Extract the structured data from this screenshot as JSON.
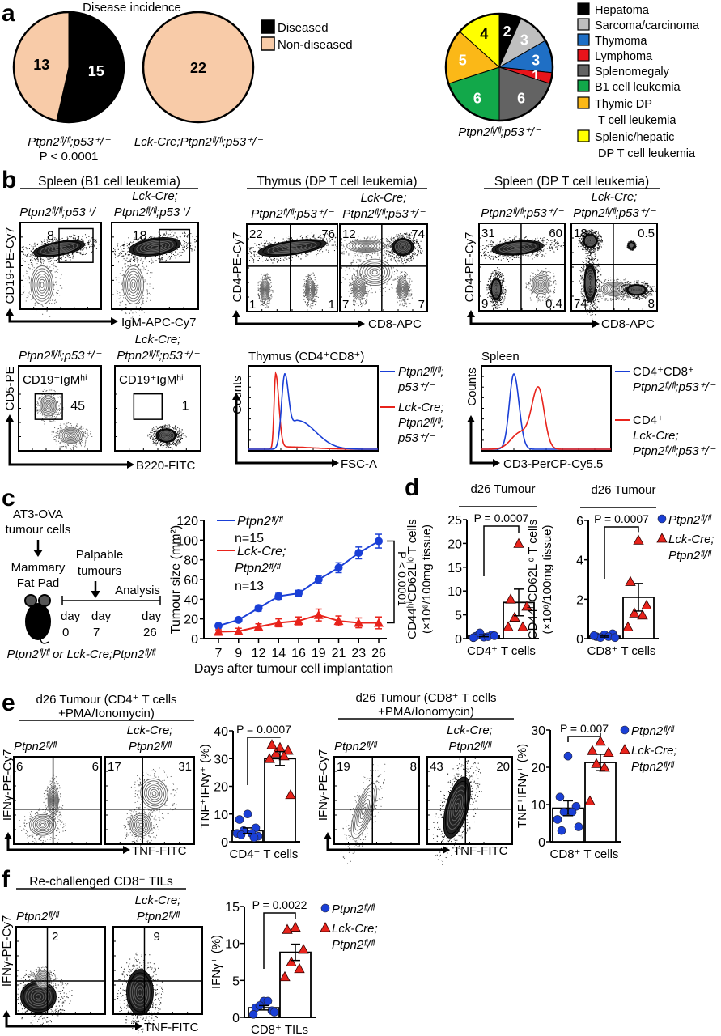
{
  "panel_labels": [
    "a",
    "b",
    "c",
    "d",
    "e",
    "f"
  ],
  "colors": {
    "control": "#1a3fd6",
    "knockout": "#e8231b",
    "diseased": "#000000",
    "non_diseased": "#f8cba8"
  },
  "pie_legend": [
    "Diseased",
    "Non-diseased"
  ],
  "chart_data": [
    {
      "type": "pie",
      "title": "Disease incidence",
      "categories": [
        "Diseased",
        "Non-diseased"
      ],
      "values": [
        15,
        13
      ],
      "colors": [
        "#000000",
        "#f8cba8"
      ],
      "caption": "Ptpn2ᶠˡ/ᶠˡ;p53⁺/⁻",
      "pvalue": "P < 0.0001"
    },
    {
      "type": "pie",
      "categories": [
        "Diseased",
        "Non-diseased"
      ],
      "values": [
        0,
        22
      ],
      "colors": [
        "#000000",
        "#f8cba8"
      ],
      "caption": "Lck-Cre;Ptpn2ᶠˡ/ᶠˡ;p53⁺/⁻"
    },
    {
      "type": "pie",
      "categories": [
        "Hepatoma",
        "Sarcoma/carcinoma",
        "Thymoma",
        "Lymphoma",
        "Splenomegaly",
        "B1 cell leukemia",
        "Thymic DP T cell leukemia",
        "Splenic/hepatic DP T cell leukemia"
      ],
      "legend_lines": [
        [
          "Hepatoma"
        ],
        [
          "Sarcoma/carcinoma"
        ],
        [
          "Thymoma"
        ],
        [
          "Lymphoma"
        ],
        [
          "Splenomegaly"
        ],
        [
          "B1 cell leukemia"
        ],
        [
          "Thymic DP",
          "T cell leukemia"
        ],
        [
          "Splenic/hepatic",
          "DP T cell leukemia"
        ]
      ],
      "values": [
        2,
        3,
        3,
        1,
        6,
        6,
        5,
        4
      ],
      "colors": [
        "#000000",
        "#bfbfbf",
        "#1f6fc5",
        "#e8141b",
        "#636363",
        "#12a84a",
        "#fbb817",
        "#ffff00"
      ],
      "label_colors": [
        "#ffffff",
        "#ffffff",
        "#ffffff",
        "#ffffff",
        "#ffffff",
        "#ffffff",
        "#ffffff",
        "#000000"
      ],
      "caption": "Ptpn2ᶠˡ/ᶠˡ;p53⁺/⁻"
    },
    {
      "type": "line",
      "x": [
        7,
        9,
        12,
        14,
        16,
        19,
        21,
        23,
        26
      ],
      "xlabel": "Days after tumour cell implantation",
      "ylabel": "Tumour size (mm²)",
      "ylim": [
        0,
        120
      ],
      "yticks": [
        0,
        20,
        40,
        60,
        80,
        100,
        120
      ],
      "annotation": "P < 0.0001",
      "series": [
        {
          "name": [
            "Ptpn2ᶠˡ/ᶠˡ"
          ],
          "n": "n=15",
          "color": "#1a3fd6",
          "marker": "circle",
          "values": [
            13,
            19,
            31,
            43,
            46,
            60,
            72,
            87,
            99
          ],
          "sem": [
            2,
            2,
            3,
            3,
            3,
            4,
            5,
            6,
            7
          ]
        },
        {
          "name": [
            "Lck-Cre;",
            "Ptpn2ᶠˡ/ᶠˡ"
          ],
          "n": "n=13",
          "color": "#e8231b",
          "marker": "triangle",
          "values": [
            7,
            7.5,
            12,
            16,
            18,
            24,
            18,
            16,
            16
          ],
          "sem": [
            2,
            3,
            3,
            4,
            4,
            6,
            5,
            5,
            6
          ]
        }
      ]
    },
    {
      "type": "bar",
      "title": "d26 Tumour",
      "xlabel": "CD4⁺ T cells",
      "ylabel": [
        "CD44ʰⁱCD62Lˡᵒ T cells",
        "(×10⁶/100mg tissue)"
      ],
      "ylim": [
        0,
        25
      ],
      "yticks": [
        0,
        5,
        10,
        15,
        20,
        25
      ],
      "pvalue": "P = 0.0007",
      "series": [
        {
          "mean": 0.6,
          "sem": 0.2,
          "points": [
            0.3,
            0.5,
            0.8,
            1.2,
            0.4,
            0.2,
            0.6
          ]
        },
        {
          "mean": 7.6,
          "sem": 2.8,
          "points": [
            20,
            8.3,
            6.8,
            4.5,
            2.5,
            2.5
          ]
        }
      ]
    },
    {
      "type": "bar",
      "title": "d26 Tumour",
      "xlabel": "CD8⁺ T cells",
      "ylabel": [
        "CD44ʰⁱCD62Lˡᵒ T cells",
        "(×10⁶/100mg tissue)"
      ],
      "ylim": [
        0,
        6
      ],
      "yticks": [
        0,
        2,
        4,
        6
      ],
      "pvalue": "P = 0.0007",
      "series": [
        {
          "name": [
            "Ptpn2ᶠˡ/ᶠˡ"
          ],
          "mean": 0.12,
          "sem": 0.04,
          "points": [
            0.2,
            0.1,
            0.25,
            0.05,
            0.1,
            0.15,
            0.05
          ]
        },
        {
          "name": [
            "Lck-Cre;",
            "Ptpn2ᶠˡ/ᶠˡ"
          ],
          "mean": 2.1,
          "sem": 0.7,
          "points": [
            5,
            2.9,
            1.7,
            1.3,
            1.2,
            0.6
          ]
        }
      ]
    },
    {
      "type": "bar",
      "xlabel": "CD4⁺ T cells",
      "ylabel": [
        "TNF⁺IFNγ⁺ (%)"
      ],
      "ylim": [
        0,
        40
      ],
      "yticks": [
        0,
        10,
        20,
        30,
        40
      ],
      "pvalue": "P = 0.0007",
      "series": [
        {
          "mean": 4,
          "sem": 1,
          "points": [
            10,
            8,
            5,
            4,
            3,
            3,
            2,
            2.5,
            1.5
          ]
        },
        {
          "mean": 30,
          "sem": 2.5,
          "points": [
            34,
            35,
            33,
            32,
            31,
            30,
            17
          ]
        }
      ]
    },
    {
      "type": "bar",
      "xlabel": "CD8⁺ T cells",
      "ylabel": [
        "TNF⁺IFNγ⁺ (%)"
      ],
      "ylim": [
        0,
        30
      ],
      "yticks": [
        0,
        10,
        20,
        30
      ],
      "pvalue": "P = 0.007",
      "series": [
        {
          "name": [
            "Ptpn2ᶠˡ/ᶠˡ"
          ],
          "mean": 9,
          "sem": 2,
          "points": [
            23,
            12,
            9.5,
            8,
            8,
            6,
            4,
            3
          ]
        },
        {
          "name": [
            "Lck-Cre;",
            "Ptpn2ᶠˡ/ᶠˡ"
          ],
          "mean": 21.3,
          "sem": 2.2,
          "points": [
            27,
            24.5,
            24,
            21,
            20,
            11
          ]
        }
      ]
    },
    {
      "type": "bar",
      "xlabel": "CD8⁺ TILs",
      "ylabel": [
        "IFNγ⁺ (%)"
      ],
      "ylim": [
        0,
        15
      ],
      "yticks": [
        0,
        5,
        10,
        15
      ],
      "pvalue": "P = 0.0022",
      "series": [
        {
          "name": [
            "Ptpn2ᶠˡ/ᶠˡ"
          ],
          "mean": 1.3,
          "sem": 0.3,
          "points": [
            2.2,
            1.3,
            0.9,
            1.6,
            2.2,
            0.4,
            0.7
          ]
        },
        {
          "name": [
            "Lck-Cre;",
            "Ptpn2ᶠˡ/ᶠˡ"
          ],
          "mean": 8.8,
          "sem": 1.1,
          "points": [
            12.2,
            11.9,
            9.2,
            7.5,
            6.6,
            5.5
          ]
        }
      ]
    }
  ],
  "c_schematic": {
    "injection": [
      "AT3-OVA",
      "tumour cells"
    ],
    "site": [
      "Mammary",
      "Fat Pad"
    ],
    "palpable": [
      "Palpable",
      "tumours"
    ],
    "analysis": "Analysis",
    "days": [
      [
        "day",
        "0"
      ],
      [
        "day",
        "7"
      ],
      [
        "day",
        "26"
      ]
    ],
    "genotypes": "Ptpn2ᶠˡ/ᶠˡ or Lck-Cre;Ptpn2ᶠˡ/ᶠˡ"
  },
  "flow_cytometry": {
    "b_spleen_b1": {
      "title": "Spleen (B1 cell leukemia)",
      "x_label": "IgM-APC-Cy7",
      "y_label": "CD19-PE-Cy7",
      "plots": [
        {
          "genotype": [
            "",
            "Ptpn2ᶠˡ/ᶠˡ;p53⁺/⁻"
          ],
          "gate_value": "8"
        },
        {
          "genotype": [
            "Lck-Cre;",
            "Ptpn2ᶠˡ/ᶠˡ;p53⁺/⁻"
          ],
          "gate_value": "18"
        }
      ]
    },
    "b_spleen_cd5": {
      "x_label": "B220-FITC",
      "y_label": "CD5-PE",
      "plots": [
        {
          "genotype": [
            "",
            "Ptpn2ᶠˡ/ᶠˡ;p53⁺/⁻"
          ],
          "gate_label": "CD19⁺IgMʰⁱ",
          "gate_value": "45"
        },
        {
          "genotype": [
            "Lck-Cre;",
            "Ptpn2ᶠˡ/ᶠˡ;p53⁺/⁻"
          ],
          "gate_label": "CD19⁺IgMʰⁱ",
          "gate_value": "1"
        }
      ]
    },
    "b_thymus": {
      "title": "Thymus (DP T cell leukemia)",
      "x_label": "CD8-APC",
      "y_label": "CD4-PE-Cy7",
      "plots": [
        {
          "genotype": [
            "",
            "Ptpn2ᶠˡ/ᶠˡ;p53⁺/⁻"
          ],
          "quadrants": {
            "upper_left": "22",
            "upper_right": "76",
            "lower_left": "1",
            "lower_right": "1"
          }
        },
        {
          "genotype": [
            "Lck-Cre;",
            "Ptpn2ᶠˡ/ᶠˡ;p53⁺/⁻"
          ],
          "quadrants": {
            "upper_left": "12",
            "upper_right": "74",
            "lower_left": "7",
            "lower_right": "7"
          }
        }
      ]
    },
    "b_spleen_dp": {
      "title": "Spleen (DP T cell leukemia)",
      "x_label": "CD8-APC",
      "y_label": "CD4-PE-Cy7",
      "plots": [
        {
          "genotype": [
            "",
            "Ptpn2ᶠˡ/ᶠˡ;p53⁺/⁻"
          ],
          "quadrants": {
            "upper_left": "31",
            "upper_right": "60",
            "lower_left": "9",
            "lower_right": "0.4"
          }
        },
        {
          "genotype": [
            "Lck-Cre;",
            "Ptpn2ᶠˡ/ᶠˡ;p53⁺/⁻"
          ],
          "quadrants": {
            "upper_left": "18",
            "upper_right": "0.5",
            "lower_left": "74",
            "lower_right": "8"
          }
        }
      ]
    },
    "b_hist_thymus": {
      "title": "Thymus (CD4⁺CD8⁺)",
      "x_label": "FSC-A",
      "y_label": "Counts",
      "legend": [
        {
          "lines": [
            "Ptpn2ᶠˡ/ᶠˡ;",
            "p53⁺/⁻"
          ],
          "color": "#1a3fd6"
        },
        {
          "lines": [
            "Lck-Cre;",
            "Ptpn2ᶠˡ/ᶠˡ;",
            "p53⁺/⁻"
          ],
          "color": "#e8231b"
        }
      ]
    },
    "b_hist_spleen": {
      "title": "Spleen",
      "x_label": "CD3-PerCP-Cy5.5",
      "y_label": "Counts",
      "legend": [
        {
          "lines": [
            "CD4⁺CD8⁺",
            "Ptpn2ᶠˡ/ᶠˡ;p53⁺/⁻"
          ],
          "color": "#1a3fd6"
        },
        {
          "lines": [
            "CD4⁺",
            "Lck-Cre;",
            "Ptpn2ᶠˡ/ᶠˡ;p53⁺/⁻"
          ],
          "color": "#e8231b"
        }
      ]
    },
    "e_cd4": {
      "title": [
        "d26 Tumour (CD4⁺ T cells",
        "+PMA/Ionomycin)"
      ],
      "x_label": "TNF-FITC",
      "y_label": "IFNγ-PE-Cy7",
      "plots": [
        {
          "genotype": [
            "",
            "Ptpn2ᶠˡ/ᶠˡ"
          ],
          "quadrants": {
            "upper_left": "6",
            "upper_right": "6"
          }
        },
        {
          "genotype": [
            "Lck-Cre;",
            "Ptpn2ᶠˡ/ᶠˡ"
          ],
          "quadrants": {
            "upper_left": "17",
            "upper_right": "31"
          }
        }
      ]
    },
    "e_cd8": {
      "title": [
        "d26 Tumour (CD8⁺ T cells",
        "+PMA/Ionomycin)"
      ],
      "x_label": "TNF-FITC",
      "y_label": "IFNγ-PE-Cy7",
      "plots": [
        {
          "genotype": [
            "",
            "Ptpn2ᶠˡ/ᶠˡ"
          ],
          "quadrants": {
            "upper_left": "19",
            "upper_right": "8"
          }
        },
        {
          "genotype": [
            "Lck-Cre;",
            "Ptpn2ᶠˡ/ᶠˡ"
          ],
          "quadrants": {
            "upper_left": "43",
            "upper_right": "20"
          }
        }
      ]
    },
    "f_rechallenge": {
      "title": "Re-challenged CD8⁺ TILs",
      "x_label": "TNF-FITC",
      "y_label": "IFNγ-PE-Cy7",
      "plots": [
        {
          "genotype": [
            "",
            "Ptpn2ᶠˡ/ᶠˡ"
          ],
          "quadrants": {
            "upper_right": "2"
          }
        },
        {
          "genotype": [
            "Lck-Cre;",
            "Ptpn2ᶠˡ/ᶠˡ"
          ],
          "quadrants": {
            "upper_right": "9"
          }
        }
      ]
    }
  }
}
